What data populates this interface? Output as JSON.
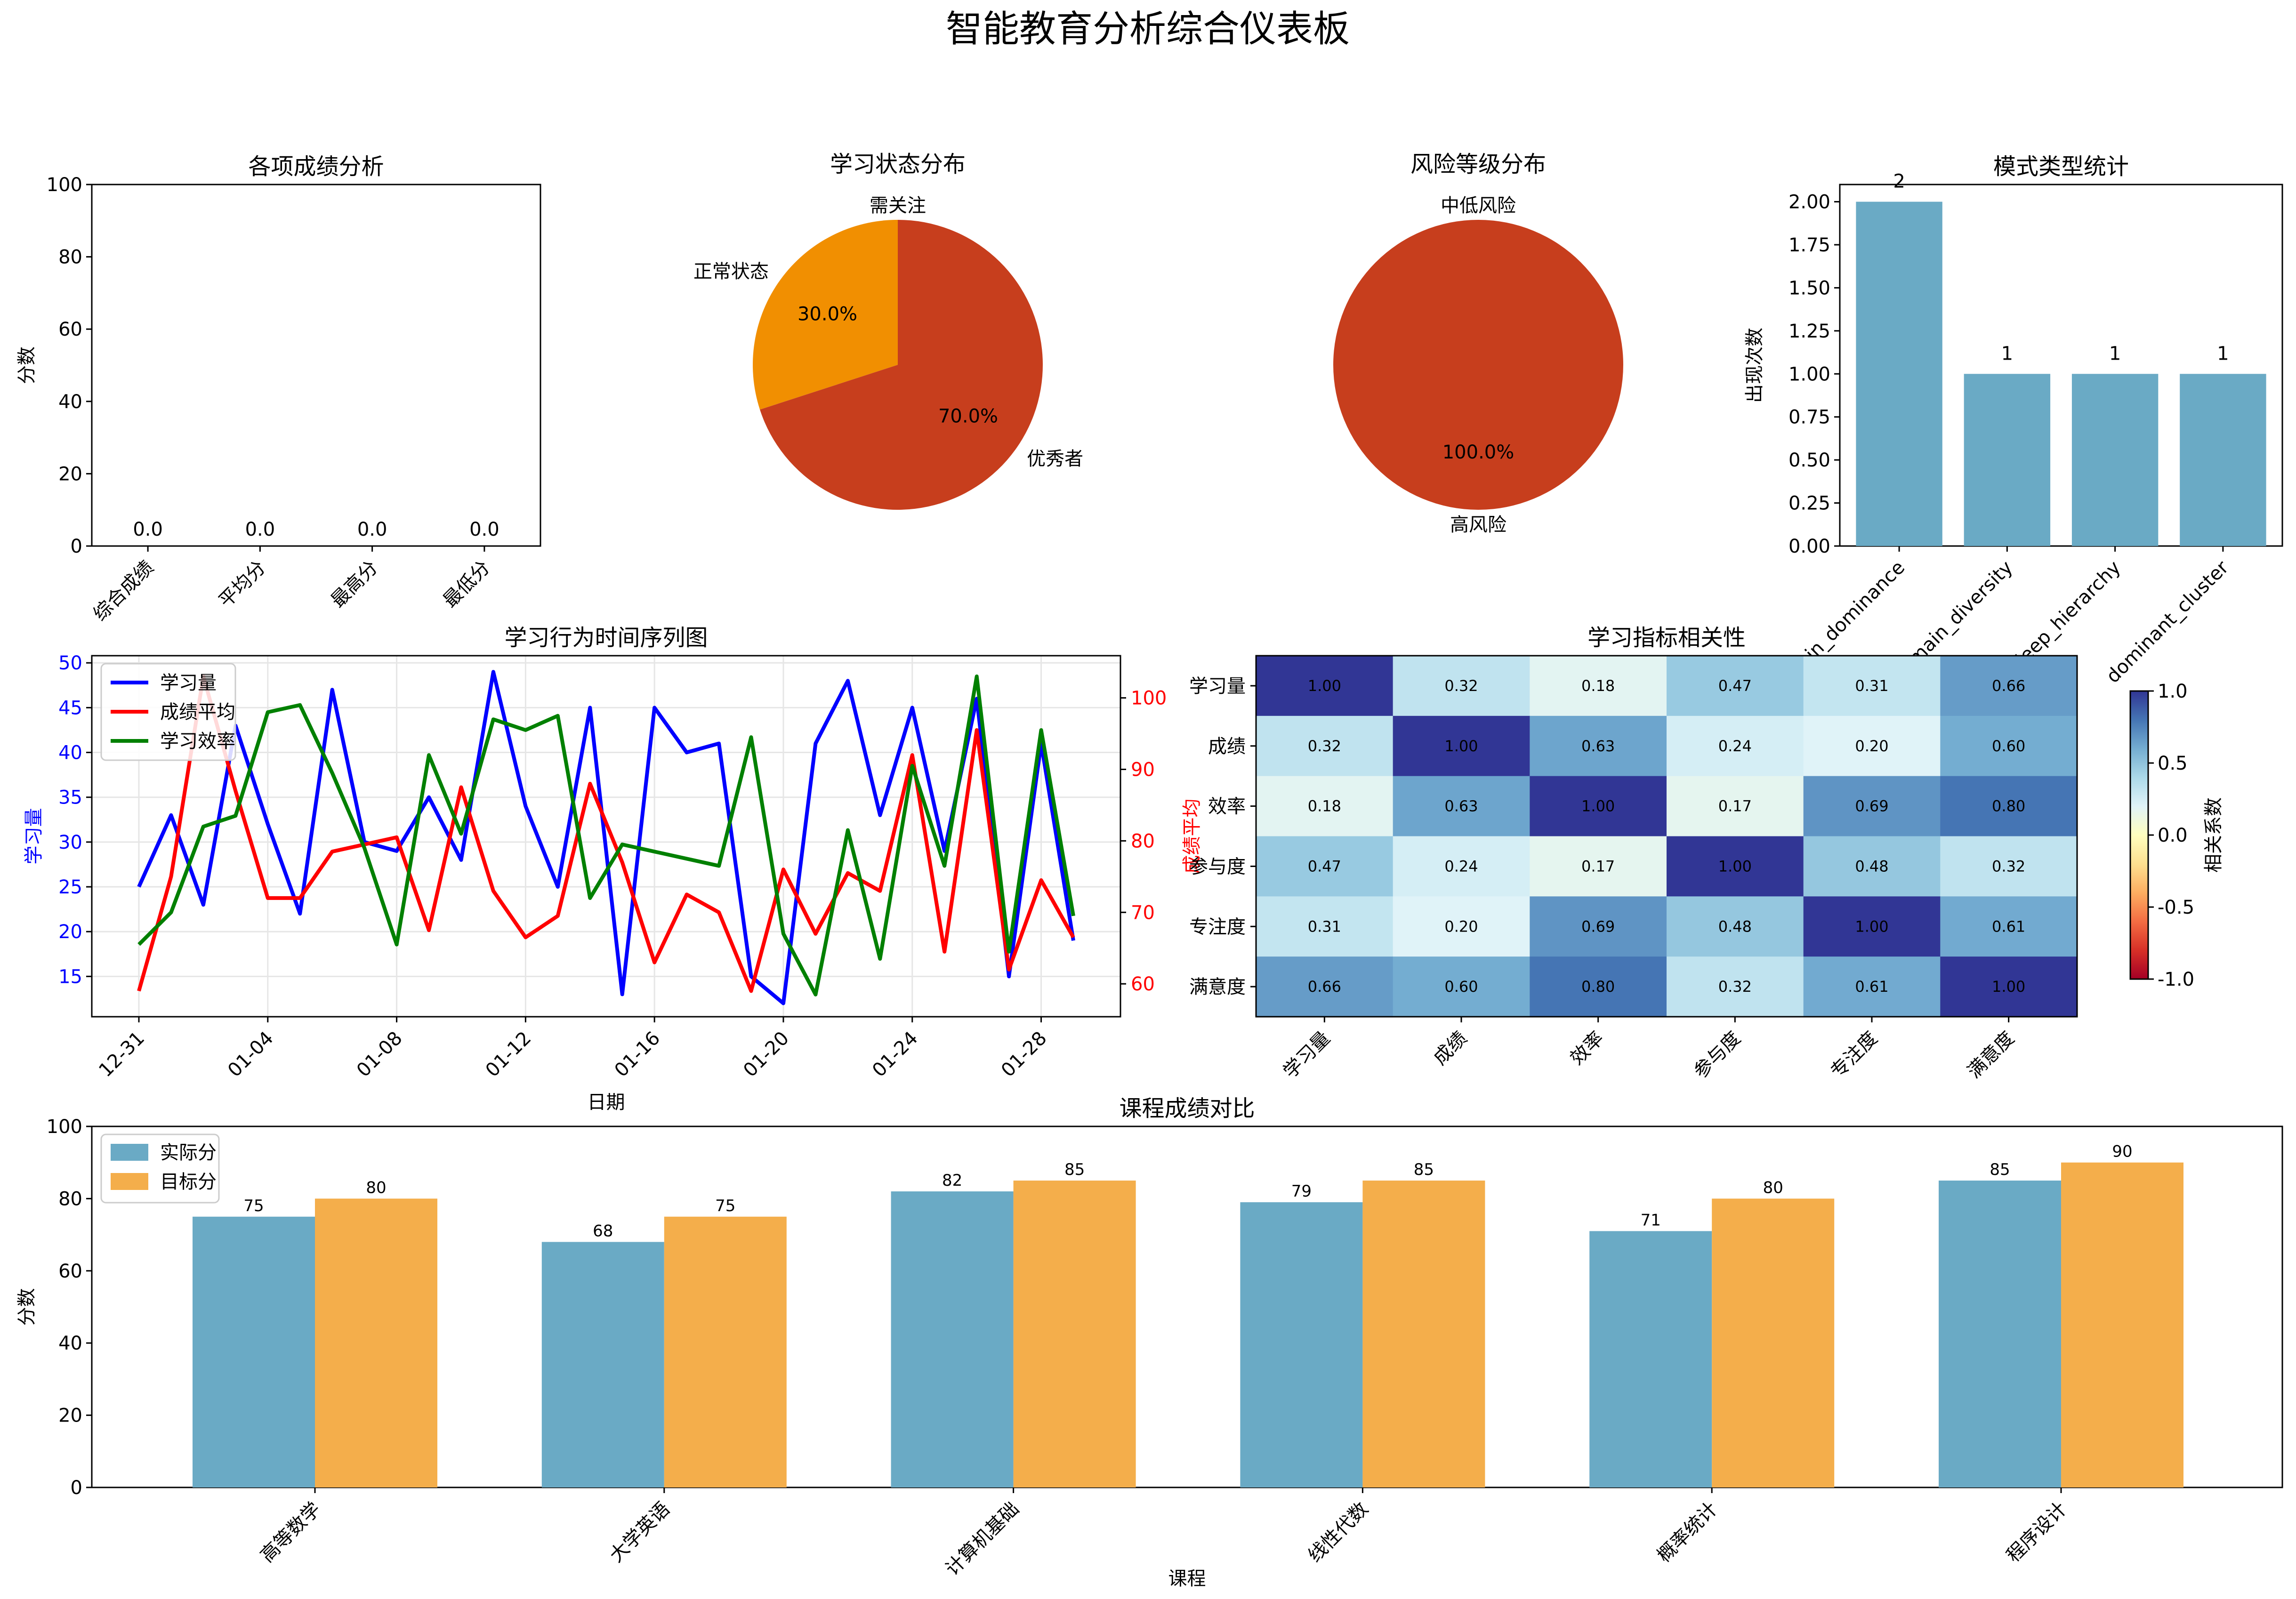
{
  "suptitle": "智能教育分析综合仪表板",
  "chart_data": [
    {
      "type": "bar",
      "title": "各项成绩分析",
      "ylabel": "分数",
      "xlabel": "",
      "categories": [
        "综合成绩",
        "平均分",
        "最高分",
        "最低分"
      ],
      "values": [
        0.0,
        0.0,
        0.0,
        0.0
      ],
      "value_labels": [
        "0.0",
        "0.0",
        "0.0",
        "0.0"
      ],
      "ylim": [
        0,
        100
      ],
      "yticks": [
        "0",
        "20",
        "40",
        "60",
        "80",
        "100"
      ]
    },
    {
      "type": "pie",
      "title": "学习状态分布",
      "slices": [
        {
          "label": "需关注",
          "value": 0.0,
          "pct": "0.0%",
          "color": "#c73e1d"
        },
        {
          "label": "正常状态",
          "value": 30.0,
          "pct": "30.0%",
          "color": "#f18f01"
        },
        {
          "label": "优秀者",
          "value": 70.0,
          "pct": "70.0%",
          "color": "#c73e1d"
        }
      ]
    },
    {
      "type": "pie",
      "title": "风险等级分布",
      "slices": [
        {
          "label": "中低风险",
          "value": 0.0,
          "pct": "0.0%",
          "color": "#c73e1d"
        },
        {
          "label": "高风险",
          "value": 100.0,
          "pct": "100.0%",
          "color": "#c73e1d"
        }
      ]
    },
    {
      "type": "bar",
      "title": "模式类型统计",
      "ylabel": "出现次数",
      "xlabel": "",
      "categories": [
        "domain_dominance",
        "domain_diversity",
        "deep_hierarchy",
        "dominant_cluster"
      ],
      "values": [
        2,
        1,
        1,
        1
      ],
      "value_labels": [
        "2",
        "1",
        "1",
        "1"
      ],
      "ylim": [
        0,
        2.1
      ],
      "yticks": [
        "0.00",
        "0.25",
        "0.50",
        "0.75",
        "1.00",
        "1.25",
        "1.50",
        "1.75",
        "2.00"
      ],
      "color": "#6aaac5"
    },
    {
      "type": "line",
      "title": "学习行为时间序列图",
      "xlabel": "日期",
      "ylabel": "学习量",
      "ylabel_right": "成绩平均",
      "ylim": [
        10.5,
        50.8
      ],
      "ylim_right": [
        55.4,
        105.9
      ],
      "yticks": [
        "15",
        "20",
        "25",
        "30",
        "35",
        "40",
        "45",
        "50"
      ],
      "yticks_right": [
        "60",
        "70",
        "80",
        "90",
        "100"
      ],
      "x_dates": [
        "12-31",
        "01-01",
        "01-02",
        "01-03",
        "01-04",
        "01-05",
        "01-06",
        "01-07",
        "01-08",
        "01-09",
        "01-10",
        "01-11",
        "01-12",
        "01-13",
        "01-14",
        "01-15",
        "01-16",
        "01-17",
        "01-18",
        "01-19",
        "01-20",
        "01-21",
        "01-22",
        "01-23",
        "01-24",
        "01-25",
        "01-26",
        "01-27",
        "01-28",
        "01-29"
      ],
      "xtick_labels": [
        "12-31",
        "01-04",
        "01-08",
        "01-12",
        "01-16",
        "01-20",
        "01-24",
        "01-28"
      ],
      "series": [
        {
          "name": "学习量",
          "axis": "left",
          "color": "#0000ff",
          "values": [
            25,
            33,
            23,
            43,
            32,
            22,
            47,
            30,
            29,
            35,
            28,
            49,
            34,
            25,
            45,
            13,
            45,
            40,
            41,
            15,
            12,
            41,
            48,
            33,
            45,
            29,
            46,
            15,
            41,
            19
          ]
        },
        {
          "name": "成绩平均",
          "axis": "right",
          "color": "#ff0000",
          "values": [
            59,
            75,
            103,
            87,
            72,
            72,
            78.5,
            79.5,
            80.5,
            67.5,
            87.5,
            73,
            66.5,
            69.5,
            88,
            77,
            63,
            72.5,
            70,
            59,
            76,
            67,
            75.5,
            73,
            92,
            64.5,
            95.5,
            62,
            74.5,
            66.5
          ]
        },
        {
          "name": "学习效率",
          "axis": "right",
          "color": "#008000",
          "values": [
            65.5,
            70,
            82,
            83.5,
            98,
            99,
            89.5,
            79,
            65.5,
            92,
            81,
            97,
            95.5,
            97.5,
            72,
            79.5,
            78.5,
            77.5,
            76.5,
            94.5,
            67,
            58.5,
            81.5,
            63.5,
            90.5,
            76.5,
            103,
            64.5,
            95.5,
            69.5
          ]
        }
      ],
      "legend": "top-left",
      "grid": true
    },
    {
      "type": "heatmap",
      "title": "学习指标相关性",
      "row_labels": [
        "学习量",
        "成绩",
        "效率",
        "参与度",
        "专注度",
        "满意度"
      ],
      "col_labels": [
        "学习量",
        "成绩",
        "效率",
        "参与度",
        "专注度",
        "满意度"
      ],
      "matrix": [
        [
          1.0,
          0.32,
          0.18,
          0.47,
          0.31,
          0.66
        ],
        [
          0.32,
          1.0,
          0.63,
          0.24,
          0.2,
          0.6
        ],
        [
          0.18,
          0.63,
          1.0,
          0.17,
          0.69,
          0.8
        ],
        [
          0.47,
          0.24,
          0.17,
          1.0,
          0.48,
          0.32
        ],
        [
          0.31,
          0.2,
          0.69,
          0.48,
          1.0,
          0.61
        ],
        [
          0.66,
          0.6,
          0.8,
          0.32,
          0.61,
          1.0
        ]
      ],
      "colorbar_label": "相关系数",
      "colorbar_range": [
        -1.0,
        1.0
      ],
      "colorbar_ticks": [
        "-1.0",
        "-0.5",
        "0.0",
        "0.5",
        "1.0"
      ],
      "colormap": "RdYlBu"
    },
    {
      "type": "bar",
      "title": "课程成绩对比",
      "xlabel": "课程",
      "ylabel": "分数",
      "categories": [
        "高等数学",
        "大学英语",
        "计算机基础",
        "线性代数",
        "概率统计",
        "程序设计"
      ],
      "series": [
        {
          "name": "实际分",
          "color": "#6aaac5",
          "values": [
            75,
            68,
            82,
            79,
            71,
            85
          ]
        },
        {
          "name": "目标分",
          "color": "#f4ae4b",
          "values": [
            80,
            75,
            85,
            85,
            80,
            90
          ]
        }
      ],
      "ylim": [
        0,
        100
      ],
      "yticks": [
        "0",
        "20",
        "40",
        "60",
        "80",
        "100"
      ],
      "legend": "top-left"
    }
  ]
}
